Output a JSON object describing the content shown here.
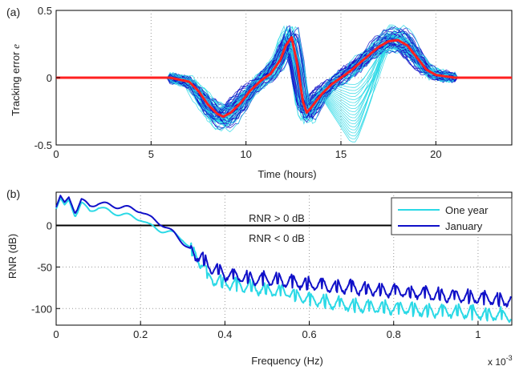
{
  "chart_data": [
    {
      "type": "line",
      "panel_label": "(a)",
      "title": "",
      "xlabel": "Time (hours)",
      "ylabel": "Tracking error",
      "ylabel_symbol": "e",
      "xlim": [
        0,
        24
      ],
      "ylim": [
        -0.5,
        0.5
      ],
      "xticks": [
        0,
        5,
        10,
        15,
        20
      ],
      "yticks": [
        -0.5,
        0,
        0.5
      ],
      "grid": true,
      "legend": "none",
      "ensemble_colors": [
        "#2bd9e6",
        "#1010c8"
      ],
      "series": [
        {
          "color": "#ff2020",
          "x": [
            0,
            6,
            7,
            7.5,
            8,
            8.5,
            8.8,
            9.2,
            9.7,
            10.2,
            10.8,
            11.3,
            11.8,
            12.1,
            12.4,
            12.7,
            13.0,
            13.2,
            13.5,
            14.0,
            14.5,
            15.0,
            15.5,
            16.0,
            16.5,
            17.0,
            17.5,
            18.0,
            18.5,
            19.0,
            19.5,
            20.0,
            20.5,
            21,
            24
          ],
          "y": [
            0,
            0,
            -0.03,
            -0.1,
            -0.2,
            -0.27,
            -0.29,
            -0.26,
            -0.19,
            -0.1,
            -0.02,
            0.03,
            0.13,
            0.24,
            0.3,
            0.1,
            -0.18,
            -0.26,
            -0.21,
            -0.12,
            -0.05,
            0.0,
            0.05,
            0.11,
            0.17,
            0.23,
            0.27,
            0.28,
            0.24,
            0.15,
            0.06,
            0.02,
            0.01,
            0,
            0
          ]
        }
      ]
    },
    {
      "type": "line",
      "panel_label": "(b)",
      "title": "",
      "xlabel": "Frequency (Hz)",
      "ylabel": "RNR (dB)",
      "x_multiplier": "x 10",
      "x_multiplier_exp": "-3",
      "xlim": [
        0,
        1.08
      ],
      "ylim": [
        -120,
        40
      ],
      "xticks": [
        0,
        0.2,
        0.4,
        0.6,
        0.8,
        1
      ],
      "yticks": [
        -100,
        -50,
        0
      ],
      "grid": true,
      "legend": "top-right",
      "annotations": [
        "RNR > 0 dB",
        "RNR < 0 dB"
      ],
      "series": [
        {
          "name": "One year",
          "color": "#2bd9e6",
          "x": [
            0,
            0.01,
            0.02,
            0.03,
            0.045,
            0.06,
            0.08,
            0.1,
            0.13,
            0.16,
            0.2,
            0.22,
            0.25,
            0.28,
            0.3,
            0.33,
            0.35,
            0.36,
            0.38,
            0.4,
            0.45,
            0.5,
            0.55,
            0.6,
            0.65,
            0.7,
            0.75,
            0.8,
            0.85,
            0.9,
            0.95,
            1.0,
            1.05,
            1.08
          ],
          "y": [
            20,
            33,
            25,
            31,
            10,
            26,
            18,
            22,
            16,
            13,
            8,
            0,
            -6,
            -10,
            -16,
            -35,
            -48,
            -62,
            -64,
            -68,
            -72,
            -77,
            -80,
            -88,
            -92,
            -95,
            -97,
            -98,
            -100,
            -102,
            -103,
            -105,
            -107,
            -108
          ]
        },
        {
          "name": "January",
          "color": "#1010c8",
          "x": [
            0,
            0.01,
            0.02,
            0.03,
            0.045,
            0.06,
            0.08,
            0.1,
            0.13,
            0.16,
            0.2,
            0.22,
            0.25,
            0.28,
            0.3,
            0.33,
            0.35,
            0.36,
            0.38,
            0.4,
            0.45,
            0.5,
            0.55,
            0.6,
            0.65,
            0.7,
            0.75,
            0.8,
            0.85,
            0.9,
            0.95,
            1.0,
            1.05,
            1.08
          ],
          "y": [
            22,
            36,
            28,
            34,
            14,
            30,
            24,
            27,
            24,
            22,
            18,
            10,
            2,
            -10,
            -20,
            -34,
            -40,
            -48,
            -52,
            -58,
            -62,
            -64,
            -66,
            -70,
            -72,
            -74,
            -76,
            -78,
            -80,
            -82,
            -84,
            -86,
            -88,
            -90
          ]
        }
      ]
    }
  ]
}
